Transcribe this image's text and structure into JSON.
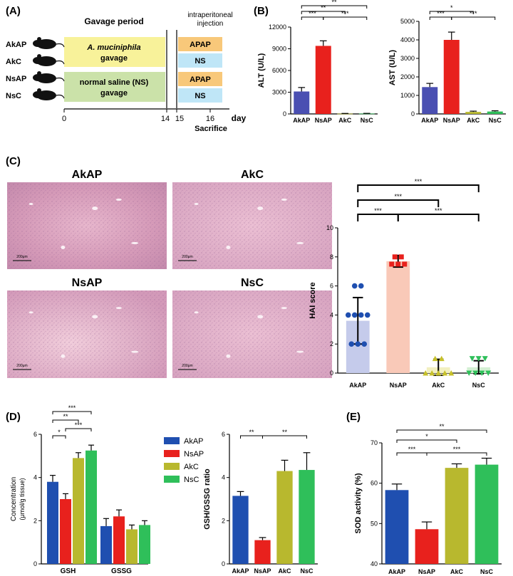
{
  "panels": {
    "A": "(A)",
    "B": "(B)",
    "C": "(C)",
    "D": "(D)",
    "E": "(E)"
  },
  "schema": {
    "gavage_period": "Gavage period",
    "ip_line1": "intraperitoneal",
    "ip_line2": "injection",
    "groups": [
      "AkAP",
      "AkC",
      "NsAP",
      "NsC"
    ],
    "box1_line1": "A. muciniphila",
    "box1_line2": "gavage",
    "box2_line1": "normal saline (NS)",
    "box2_line2": "gavage",
    "inj": [
      "APAP",
      "NS",
      "APAP",
      "NS"
    ],
    "axis_ticks": [
      "0",
      "14",
      "15",
      "16"
    ],
    "day": "day",
    "sacrifice": "Sacrifice",
    "colors": {
      "yellow": "#f8f29a",
      "green": "#cbe2a9",
      "orange": "#f8c87a",
      "blue": "#bfe6f7"
    }
  },
  "histology": {
    "labels": [
      "AkAP",
      "AkC",
      "NsAP",
      "NsC"
    ],
    "scale": "200μm"
  },
  "chart_data": [
    {
      "id": "B-ALT",
      "type": "bar",
      "categories": [
        "AkAP",
        "NsAP",
        "AkC",
        "NsC"
      ],
      "values": [
        3100,
        9400,
        40,
        50
      ],
      "errors": [
        550,
        700,
        30,
        30
      ],
      "ylabel": "ALT (U/L)",
      "ylim": [
        0,
        12000
      ],
      "yticks": [
        "0",
        "3000",
        "6000",
        "9000",
        "12000"
      ],
      "colors": [
        "#4a4fb2",
        "#e8211d",
        "#b8b82e",
        "#2fbf5a"
      ],
      "significance": [
        {
          "a": 0,
          "b": 1,
          "label": "***"
        },
        {
          "a": 1,
          "b": 3,
          "label": "***"
        },
        {
          "a": 0,
          "b": 2,
          "label": "**"
        },
        {
          "a": 0,
          "b": 3,
          "label": "**"
        }
      ]
    },
    {
      "id": "B-AST",
      "type": "bar",
      "categories": [
        "AkAP",
        "NsAP",
        "AkC",
        "NsC"
      ],
      "values": [
        1450,
        4000,
        110,
        130
      ],
      "errors": [
        200,
        420,
        40,
        40
      ],
      "ylabel": "AST (U/L)",
      "ylim": [
        0,
        5000
      ],
      "yticks": [
        "0",
        "1000",
        "2000",
        "3000",
        "4000",
        "5000"
      ],
      "colors": [
        "#4a4fb2",
        "#e8211d",
        "#b8b82e",
        "#2fbf5a"
      ],
      "significance": [
        {
          "a": 0,
          "b": 1,
          "label": "***"
        },
        {
          "a": 1,
          "b": 3,
          "label": "***"
        },
        {
          "a": 0,
          "b": 2,
          "label": "*"
        }
      ]
    },
    {
      "id": "C-HAI",
      "type": "bar",
      "categories": [
        "AkAP",
        "NsAP",
        "AkC",
        "NsC"
      ],
      "values": [
        3.6,
        7.7,
        0.4,
        0.4
      ],
      "errors": [
        1.6,
        0.4,
        0.55,
        0.45
      ],
      "points": [
        [
          6,
          6,
          4,
          4,
          4,
          4,
          2,
          2,
          2
        ],
        [
          8,
          8,
          7.5,
          7.5,
          7.5
        ],
        [
          1,
          1,
          0,
          0,
          0,
          0,
          0
        ],
        [
          1,
          1,
          1,
          0,
          0,
          0,
          0
        ]
      ],
      "ylabel": "HAI score",
      "ylim": [
        0,
        10
      ],
      "yticks": [
        "0",
        "2",
        "4",
        "6",
        "8",
        "10"
      ],
      "colors": [
        "#c5cbeb",
        "#f9c9b8",
        "#f2f0bf",
        "#d3f0d3"
      ],
      "point_colors": [
        "#1f4fb0",
        "#e8211d",
        "#c6c02a",
        "#2fbf5a"
      ],
      "significance": [
        {
          "a": 0,
          "b": 1,
          "label": "***"
        },
        {
          "a": 1,
          "b": 3,
          "label": "***"
        },
        {
          "a": 0,
          "b": 2,
          "label": "***"
        },
        {
          "a": 0,
          "b": 3,
          "label": "***"
        }
      ]
    },
    {
      "id": "D-conc",
      "type": "bar",
      "categories": [
        "GSH",
        "GSSG"
      ],
      "series": [
        {
          "name": "AkAP",
          "values": [
            3.8,
            1.75
          ],
          "errors": [
            0.3,
            0.35
          ]
        },
        {
          "name": "NsAP",
          "values": [
            3.0,
            2.2
          ],
          "errors": [
            0.25,
            0.3
          ]
        },
        {
          "name": "AkC",
          "values": [
            4.9,
            1.6
          ],
          "errors": [
            0.25,
            0.2
          ]
        },
        {
          "name": "NsC",
          "values": [
            5.25,
            1.8
          ],
          "errors": [
            0.25,
            0.2
          ]
        }
      ],
      "ylabel_line1": "Concentration",
      "ylabel_line2": "(μmol/g tissue)",
      "ylim": [
        0,
        6
      ],
      "yticks": [
        "0",
        "2",
        "4",
        "6"
      ],
      "colors": [
        "#1f4fb0",
        "#e8211d",
        "#b8b82e",
        "#2fbf5a"
      ],
      "legend": [
        "AkAP",
        "NsAP",
        "AkC",
        "NsC"
      ],
      "significance": [
        {
          "a": 0,
          "b": 1,
          "label": "*"
        },
        {
          "a": 1,
          "b": 3,
          "label": "***"
        },
        {
          "a": 0,
          "b": 2,
          "label": "**"
        },
        {
          "a": 0,
          "b": 3,
          "label": "***"
        }
      ]
    },
    {
      "id": "D-ratio",
      "type": "bar",
      "categories": [
        "AkAP",
        "NsAP",
        "AkC",
        "NsC"
      ],
      "values": [
        3.15,
        1.1,
        4.3,
        4.35
      ],
      "errors": [
        0.2,
        0.12,
        0.5,
        0.8
      ],
      "ylabel": "GSH/GSSG ratio",
      "ylim": [
        0,
        6
      ],
      "yticks": [
        "0",
        "2",
        "4",
        "6"
      ],
      "colors": [
        "#1f4fb0",
        "#e8211d",
        "#b8b82e",
        "#2fbf5a"
      ],
      "significance": [
        {
          "a": 0,
          "b": 1,
          "label": "**"
        },
        {
          "a": 1,
          "b": 3,
          "label": "**"
        }
      ]
    },
    {
      "id": "E-SOD",
      "type": "bar",
      "categories": [
        "AkAP",
        "NsAP",
        "AkC",
        "NsC"
      ],
      "values": [
        58.3,
        48.6,
        63.8,
        64.6
      ],
      "errors": [
        1.5,
        1.8,
        1.0,
        1.6
      ],
      "ylabel": "SOD activity (%)",
      "ylim": [
        40,
        70
      ],
      "yticks": [
        "40",
        "50",
        "60",
        "70"
      ],
      "colors": [
        "#1f4fb0",
        "#e8211d",
        "#b8b82e",
        "#2fbf5a"
      ],
      "significance": [
        {
          "a": 0,
          "b": 1,
          "label": "***"
        },
        {
          "a": 1,
          "b": 3,
          "label": "***"
        },
        {
          "a": 0,
          "b": 2,
          "label": "*"
        },
        {
          "a": 0,
          "b": 3,
          "label": "**"
        }
      ]
    }
  ]
}
